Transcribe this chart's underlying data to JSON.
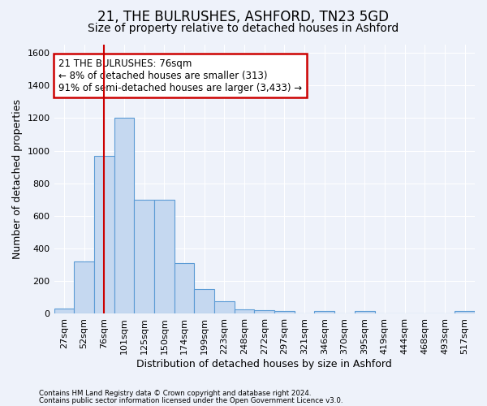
{
  "title": "21, THE BULRUSHES, ASHFORD, TN23 5GD",
  "subtitle": "Size of property relative to detached houses in Ashford",
  "xlabel": "Distribution of detached houses by size in Ashford",
  "ylabel": "Number of detached properties",
  "categories": [
    "27sqm",
    "52sqm",
    "76sqm",
    "101sqm",
    "125sqm",
    "150sqm",
    "174sqm",
    "199sqm",
    "223sqm",
    "248sqm",
    "272sqm",
    "297sqm",
    "321sqm",
    "346sqm",
    "370sqm",
    "395sqm",
    "419sqm",
    "444sqm",
    "468sqm",
    "493sqm",
    "517sqm"
  ],
  "values": [
    30,
    320,
    970,
    1200,
    700,
    700,
    310,
    150,
    75,
    25,
    20,
    15,
    0,
    15,
    0,
    15,
    0,
    0,
    0,
    0,
    15
  ],
  "bar_color": "#c5d8f0",
  "bar_edge_color": "#5b9bd5",
  "red_line_index": 2,
  "annotation_title": "21 THE BULRUSHES: 76sqm",
  "annotation_line1": "← 8% of detached houses are smaller (313)",
  "annotation_line2": "91% of semi-detached houses are larger (3,433) →",
  "annotation_box_color": "#ffffff",
  "annotation_box_edge": "#cc0000",
  "ylim": [
    0,
    1650
  ],
  "yticks": [
    0,
    200,
    400,
    600,
    800,
    1000,
    1200,
    1400,
    1600
  ],
  "footnote1": "Contains HM Land Registry data © Crown copyright and database right 2024.",
  "footnote2": "Contains public sector information licensed under the Open Government Licence v3.0.",
  "bg_color": "#eef2fa",
  "grid_color": "#ffffff",
  "title_fontsize": 12,
  "subtitle_fontsize": 10,
  "tick_fontsize": 8,
  "label_fontsize": 9
}
